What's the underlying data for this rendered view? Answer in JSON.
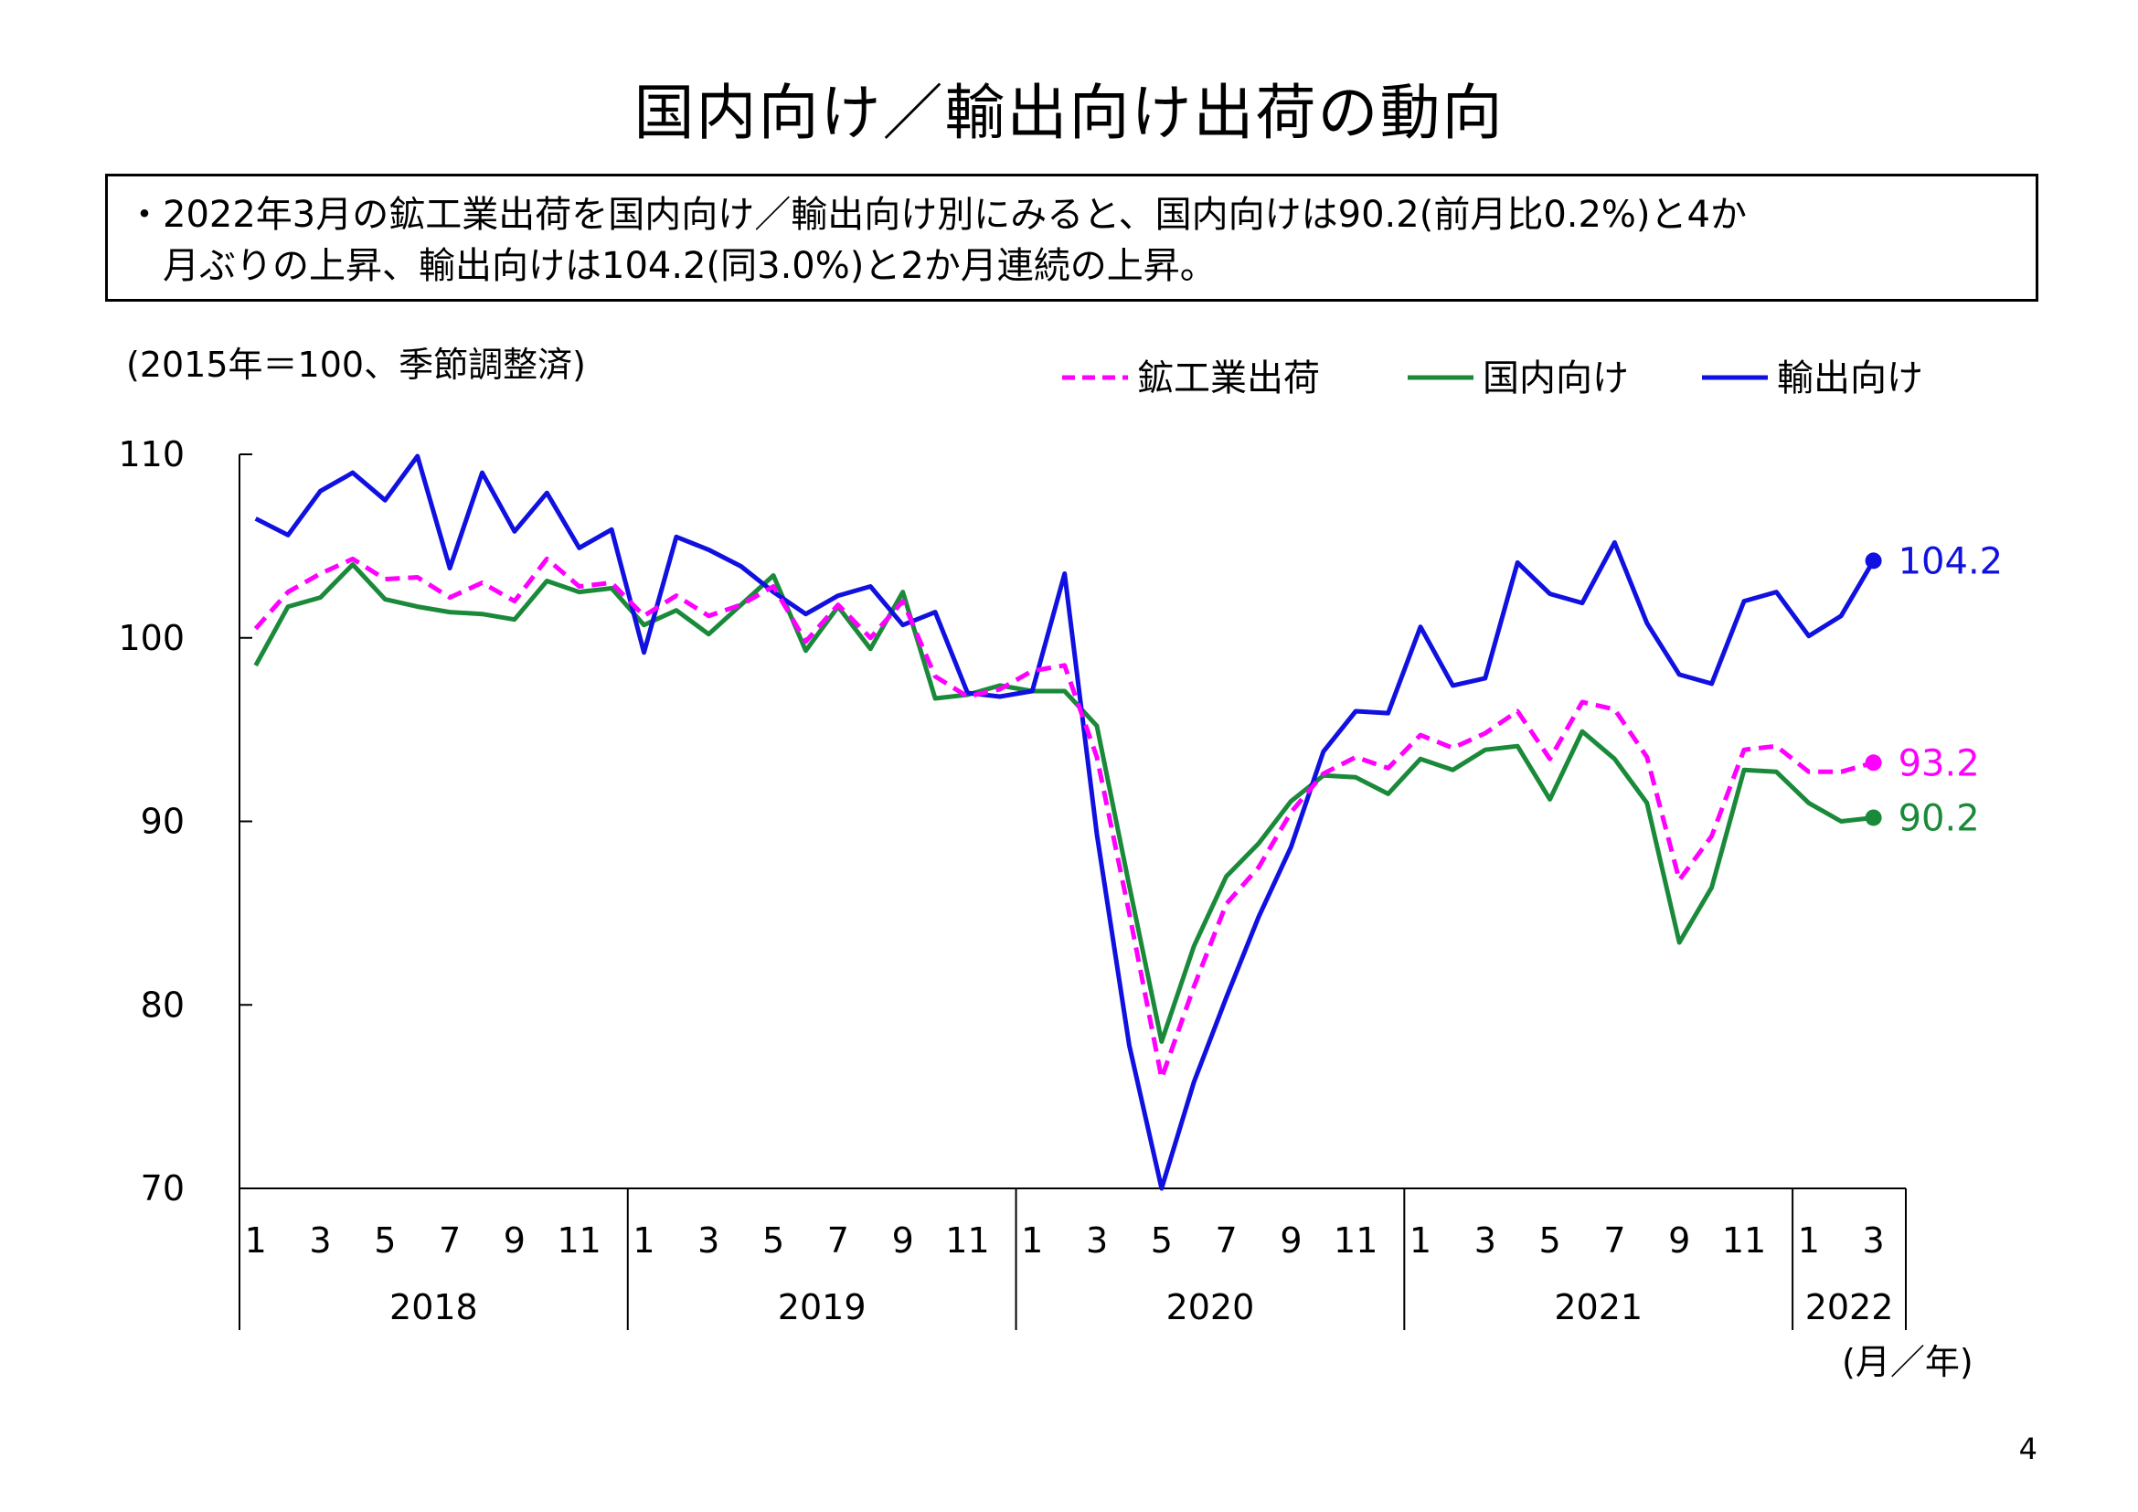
{
  "title": "国内向け／輸出向け出荷の動向",
  "summary": {
    "line1": "・2022年3月の鉱工業出荷を国内向け／輸出向け別にみると、国内向けは90.2(前月比0.2%)と4か",
    "line2": "月ぶりの上昇、輸出向けは104.2(同3.0%)と2か月連続の上昇。"
  },
  "page_number": "4",
  "chart_data": {
    "type": "line",
    "unit_note": "(2015年＝100、季節調整済)",
    "x_unit_label": "(月／年)",
    "ylim": [
      70,
      110
    ],
    "yticks": [
      "110",
      "100",
      "90",
      "80",
      "70"
    ],
    "month_tick_labels": [
      "1",
      "3",
      "5",
      "7",
      "9",
      "11",
      "1",
      "3",
      "5",
      "7",
      "9",
      "11",
      "1",
      "3",
      "5",
      "7",
      "9",
      "11",
      "1",
      "3",
      "5",
      "7",
      "9",
      "11",
      "1",
      "3"
    ],
    "years": [
      "2018",
      "2019",
      "2020",
      "2021",
      "2022"
    ],
    "x": [
      "2018-01",
      "2018-02",
      "2018-03",
      "2018-04",
      "2018-05",
      "2018-06",
      "2018-07",
      "2018-08",
      "2018-09",
      "2018-10",
      "2018-11",
      "2018-12",
      "2019-01",
      "2019-02",
      "2019-03",
      "2019-04",
      "2019-05",
      "2019-06",
      "2019-07",
      "2019-08",
      "2019-09",
      "2019-10",
      "2019-11",
      "2019-12",
      "2020-01",
      "2020-02",
      "2020-03",
      "2020-04",
      "2020-05",
      "2020-06",
      "2020-07",
      "2020-08",
      "2020-09",
      "2020-10",
      "2020-11",
      "2020-12",
      "2021-01",
      "2021-02",
      "2021-03",
      "2021-04",
      "2021-05",
      "2021-06",
      "2021-07",
      "2021-08",
      "2021-09",
      "2021-10",
      "2021-11",
      "2021-12",
      "2022-01",
      "2022-02",
      "2022-03"
    ],
    "series": [
      {
        "name": "鉱工業出荷",
        "color": "#ff00ff",
        "style": "dashed",
        "end_label": "93.2",
        "values": [
          100.5,
          102.5,
          103.5,
          104.3,
          103.2,
          103.3,
          102.2,
          103.0,
          102.0,
          104.3,
          102.8,
          103.0,
          101.2,
          102.3,
          101.2,
          101.8,
          102.8,
          99.8,
          101.8,
          100.0,
          102.0,
          97.9,
          96.8,
          97.2,
          98.2,
          98.5,
          93.5,
          85.0,
          76.0,
          81.0,
          85.5,
          87.5,
          90.5,
          92.6,
          93.5,
          92.9,
          94.7,
          94.0,
          94.8,
          96.0,
          93.4,
          96.5,
          96.1,
          93.5,
          86.8,
          89.2,
          93.9,
          94.1,
          92.7,
          92.7,
          93.2
        ]
      },
      {
        "name": "国内向け",
        "color": "#1a8a3a",
        "style": "solid",
        "end_label": "90.2",
        "values": [
          98.5,
          101.7,
          102.2,
          104.0,
          102.1,
          101.7,
          101.4,
          101.3,
          101.0,
          103.1,
          102.5,
          102.7,
          100.7,
          101.5,
          100.2,
          101.8,
          103.4,
          99.3,
          101.7,
          99.4,
          102.5,
          96.7,
          96.9,
          97.4,
          97.1,
          97.1,
          95.2,
          86.5,
          78.0,
          83.2,
          87.0,
          88.8,
          91.1,
          92.5,
          92.4,
          91.5,
          93.4,
          92.8,
          93.9,
          94.1,
          91.2,
          94.9,
          93.4,
          91.0,
          83.4,
          86.4,
          92.8,
          92.7,
          91.0,
          90.0,
          90.2
        ]
      },
      {
        "name": "輸出向け",
        "color": "#1010e0",
        "style": "solid",
        "end_label": "104.2",
        "values": [
          106.5,
          105.6,
          108.0,
          109.0,
          107.5,
          109.9,
          103.8,
          109.0,
          105.8,
          107.9,
          104.9,
          105.9,
          99.2,
          105.5,
          104.8,
          103.9,
          102.5,
          101.3,
          102.3,
          102.8,
          100.7,
          101.4,
          97.0,
          96.8,
          97.1,
          103.5,
          89.3,
          77.8,
          70.0,
          75.8,
          80.4,
          84.8,
          88.6,
          93.8,
          96.0,
          95.9,
          100.6,
          97.4,
          97.8,
          104.1,
          102.4,
          101.9,
          105.2,
          100.8,
          98.0,
          97.5,
          102.0,
          102.5,
          100.1,
          101.2,
          104.2
        ]
      }
    ]
  }
}
